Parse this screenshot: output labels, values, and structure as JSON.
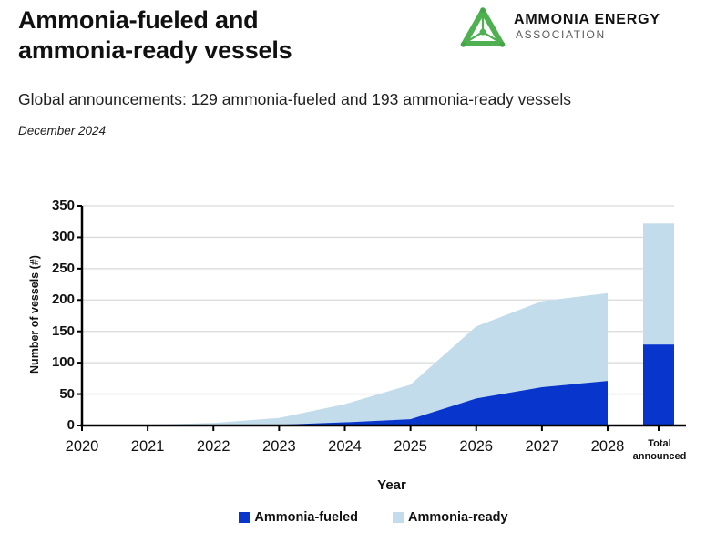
{
  "header": {
    "title_line1": "Ammonia-fueled and",
    "title_line2": "ammonia-ready vessels",
    "subtitle": "Global announcements: 129 ammonia-fueled and 193 ammonia-ready vessels",
    "date": "December 2024",
    "logo": {
      "name": "AMMONIA ENERGY",
      "subname": "ASSOCIATION",
      "icon": "ammonia-molecule-triangle-icon",
      "green": "#4fb052"
    }
  },
  "chart_data": {
    "type": "area",
    "stacked": true,
    "title": "",
    "xlabel": "Year",
    "ylabel": "Number of vessels (#)",
    "ylim": [
      0,
      350
    ],
    "y_ticks": [
      0,
      50,
      100,
      150,
      200,
      250,
      300,
      350
    ],
    "grid": true,
    "legend_position": "bottom",
    "categories": [
      "2020",
      "2021",
      "2022",
      "2023",
      "2024",
      "2025",
      "2026",
      "2027",
      "2028"
    ],
    "series": [
      {
        "name": "Ammonia-fueled",
        "color": "#0836cd",
        "values": [
          0,
          0,
          0,
          1,
          5,
          10,
          43,
          61,
          71
        ]
      },
      {
        "name": "Ammonia-ready",
        "color": "#c2dcec",
        "values": [
          0,
          1,
          4,
          11,
          29,
          55,
          115,
          137,
          140
        ]
      }
    ],
    "totals_by_year": [
      0,
      1,
      4,
      12,
      34,
      65,
      158,
      198,
      211
    ],
    "total_bar": {
      "label_line1": "Total",
      "label_line2": "announced",
      "ammonia_fueled": 129,
      "ammonia_ready": 193,
      "total": 322
    },
    "colors": {
      "axis": "#000000",
      "gridline": "#d9d9d9"
    }
  }
}
